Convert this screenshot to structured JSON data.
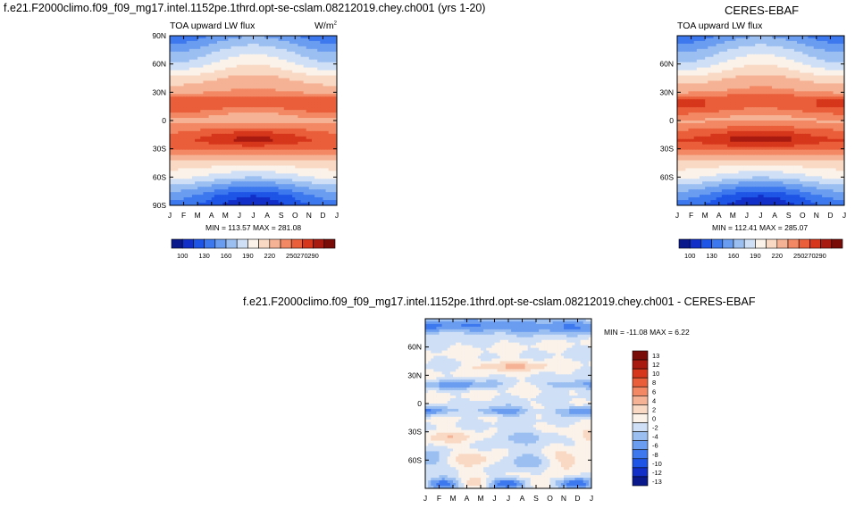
{
  "panel1": {
    "title": "f.e21.F2000climo.f09_f09_mg17.intel.1152pe.1thrd.opt-se-cslam.08212019.chey.ch001 (yrs 1-20)",
    "subtitle": "TOA upward LW flux",
    "units_base": "W/m",
    "units_exp": "2",
    "minmax": "MIN = 113.57 MAX = 281.08"
  },
  "panel2": {
    "title": "CERES-EBAF",
    "subtitle": "TOA upward LW flux",
    "minmax": "MIN = 112.41 MAX = 285.07"
  },
  "panel3": {
    "title": "f.e21.F2000climo.f09_f09_mg17.intel.1152pe.1thrd.opt-se-cslam.08212019.chey.ch001 - CERES-EBAF",
    "minmax": "MIN = -11.08 MAX =  6.22"
  },
  "colors": {
    "abs_bar": [
      "#0a1a8c",
      "#1230c8",
      "#1f55e6",
      "#3d78ee",
      "#6a9cf0",
      "#9cbff2",
      "#cfe0f6",
      "#fbf2ea",
      "#f9d9c4",
      "#f6b294",
      "#f28864",
      "#ea5e3a",
      "#d6361b",
      "#a81a10",
      "#7a0c08"
    ],
    "diff_bar": [
      "#0a1a8c",
      "#1230c8",
      "#1f55e6",
      "#3d78ee",
      "#6a9cf0",
      "#9cbff2",
      "#cfe0f6",
      "#fbf2ea",
      "#f9d9c4",
      "#f6b294",
      "#f28864",
      "#ea5e3a",
      "#d6361b",
      "#a81a10",
      "#7a0c08"
    ]
  },
  "chart_data": [
    {
      "type": "heatmap",
      "name": "model",
      "x_ticks": [
        "J",
        "F",
        "M",
        "A",
        "M",
        "J",
        "J",
        "A",
        "S",
        "O",
        "N",
        "D",
        "J"
      ],
      "y_ticks": [
        "90N",
        "60N",
        "30N",
        "0",
        "30S",
        "60S",
        "90S"
      ],
      "y_values": [
        90,
        60,
        30,
        0,
        -30,
        -60,
        -90
      ],
      "colorbar_labels": [
        "100",
        "130",
        "160",
        "190",
        "220",
        "250",
        "270",
        "290"
      ],
      "min": 113.57,
      "max": 281.08,
      "lat_profile": [
        [
          90,
          160
        ],
        [
          75,
          185
        ],
        [
          60,
          205
        ],
        [
          45,
          232
        ],
        [
          30,
          250
        ],
        [
          22,
          268
        ],
        [
          15,
          266
        ],
        [
          5,
          250
        ],
        [
          0,
          247
        ],
        [
          -10,
          262
        ],
        [
          -20,
          276
        ],
        [
          -30,
          262
        ],
        [
          -45,
          228
        ],
        [
          -60,
          200
        ],
        [
          -70,
          172
        ],
        [
          -80,
          148
        ],
        [
          -90,
          135
        ]
      ]
    },
    {
      "type": "heatmap",
      "name": "obs",
      "x_ticks": [
        "J",
        "F",
        "M",
        "A",
        "M",
        "J",
        "J",
        "A",
        "S",
        "O",
        "N",
        "D",
        "J"
      ],
      "y_ticks": [
        "60N",
        "30N",
        "0",
        "30S",
        "60S"
      ],
      "y_values": [
        60,
        30,
        0,
        -30,
        -60
      ],
      "colorbar_labels": [
        "100",
        "130",
        "160",
        "190",
        "220",
        "250",
        "270",
        "290"
      ],
      "min": 112.41,
      "max": 285.07,
      "lat_profile": [
        [
          90,
          160
        ],
        [
          75,
          185
        ],
        [
          60,
          205
        ],
        [
          45,
          232
        ],
        [
          30,
          252
        ],
        [
          22,
          270
        ],
        [
          15,
          268
        ],
        [
          5,
          252
        ],
        [
          0,
          248
        ],
        [
          -10,
          264
        ],
        [
          -20,
          279
        ],
        [
          -30,
          264
        ],
        [
          -45,
          228
        ],
        [
          -60,
          200
        ],
        [
          -70,
          172
        ],
        [
          -80,
          148
        ],
        [
          -90,
          134
        ]
      ]
    },
    {
      "type": "heatmap",
      "name": "difference",
      "x_ticks": [
        "J",
        "F",
        "M",
        "A",
        "M",
        "J",
        "J",
        "A",
        "S",
        "O",
        "N",
        "D",
        "J"
      ],
      "y_ticks": [
        "60N",
        "30N",
        "0",
        "30S",
        "60S"
      ],
      "y_values": [
        60,
        30,
        0,
        -30,
        -60
      ],
      "colorbar_labels": [
        "13",
        "12",
        "10",
        "8",
        "6",
        "4",
        "2",
        "0",
        "-2",
        "-4",
        "-6",
        "-8",
        "-10",
        "-12",
        "-13"
      ],
      "min": -11.08,
      "max": 6.22
    }
  ]
}
